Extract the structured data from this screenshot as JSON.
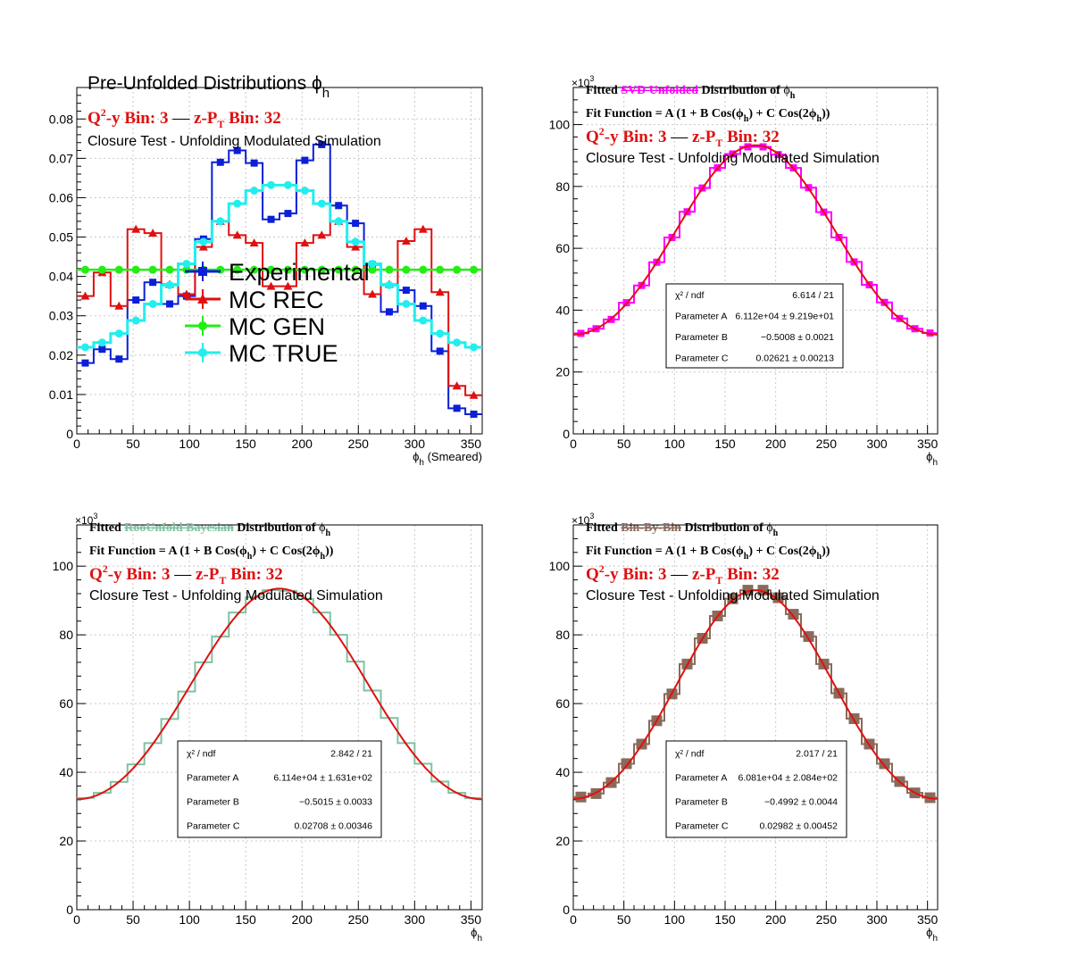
{
  "colors": {
    "exp": "#0a1fd6",
    "rec": "#e01010",
    "gen": "#22ee11",
    "true": "#22eeee",
    "svd": "#ff00ff",
    "bayes": "#7fc2a2",
    "bbb": "#8a6a5a",
    "fit": "#e01010",
    "red_text": "#e01010",
    "grid": "#c8c8c8"
  },
  "chart_data": [
    {
      "type": "bar",
      "title": "Pre-Unfolded Distributions",
      "title_symbol": "ϕ",
      "title_sub": "h",
      "bin_line": {
        "q2y": "Q",
        "sup": "2",
        "q2y_rest": "-y Bin: 3",
        "dash": "—",
        "zpt": "z-P",
        "zpt_sub": "T",
        "zpt_rest": " Bin: 32"
      },
      "subtitle": "Closure Test - Unfolding Modulated Simulation",
      "xlabel": "ϕ",
      "xlabel_sub": "h",
      "xlabel_suffix": " (Smeared)",
      "xlim": [
        0,
        360
      ],
      "ylim": [
        0,
        0.088
      ],
      "x_ticks": [
        "0",
        "50",
        "100",
        "150",
        "200",
        "250",
        "300",
        "350"
      ],
      "y_ticks": [
        "0",
        "0.01",
        "0.02",
        "0.03",
        "0.04",
        "0.05",
        "0.06",
        "0.07",
        "0.08"
      ],
      "grid": true,
      "legend_position": "center-left",
      "bin_centers": [
        7.5,
        22.5,
        37.5,
        52.5,
        67.5,
        82.5,
        97.5,
        112.5,
        127.5,
        142.5,
        157.5,
        172.5,
        187.5,
        202.5,
        217.5,
        232.5,
        247.5,
        262.5,
        277.5,
        292.5,
        307.5,
        322.5,
        337.5,
        352.5
      ],
      "series": [
        {
          "name": "Experimental",
          "color_key": "exp",
          "marker": "square",
          "values": [
            0.018,
            0.0215,
            0.019,
            0.034,
            0.0385,
            0.033,
            0.035,
            0.0495,
            0.069,
            0.072,
            0.0688,
            0.0545,
            0.056,
            0.0695,
            0.0735,
            0.058,
            0.0535,
            0.043,
            0.031,
            0.0365,
            0.0325,
            0.021,
            0.0065,
            0.005
          ]
        },
        {
          "name": "MC REC",
          "color_key": "rec",
          "marker": "triangle",
          "values": [
            0.035,
            0.041,
            0.0325,
            0.052,
            0.051,
            0.038,
            0.0355,
            0.0475,
            0.054,
            0.0505,
            0.0485,
            0.0375,
            0.0375,
            0.0485,
            0.0505,
            0.054,
            0.0475,
            0.0355,
            0.038,
            0.049,
            0.052,
            0.036,
            0.0122,
            0.0098
          ]
        },
        {
          "name": "MC GEN",
          "color_key": "gen",
          "marker": "circle",
          "values": [
            0.0417,
            0.0417,
            0.0417,
            0.0417,
            0.0417,
            0.0417,
            0.0417,
            0.0417,
            0.0417,
            0.0417,
            0.0417,
            0.0417,
            0.0417,
            0.0417,
            0.0417,
            0.0417,
            0.0417,
            0.0417,
            0.0417,
            0.0417,
            0.0417,
            0.0417,
            0.0417,
            0.0417
          ]
        },
        {
          "name": "MC TRUE",
          "color_key": "true",
          "marker": "circle",
          "values": [
            0.022,
            0.0232,
            0.0255,
            0.0288,
            0.033,
            0.0378,
            0.0432,
            0.0488,
            0.054,
            0.0585,
            0.0618,
            0.0632,
            0.0632,
            0.0618,
            0.0585,
            0.054,
            0.0488,
            0.0432,
            0.0378,
            0.033,
            0.0288,
            0.0255,
            0.0232,
            0.022
          ]
        }
      ]
    },
    {
      "type": "line",
      "title_parts": [
        "Fitted ",
        "SVD Unfolded",
        " Distribution of ",
        "ϕ",
        "h"
      ],
      "title_color_key": "svd",
      "fit_line": "Fit Function = A (1 + B Cos(ϕ",
      "fit_line_sub": "h",
      "fit_line_mid": ") + C Cos(2ϕ",
      "fit_line_end": "))",
      "bin_line": {
        "q2y": "Q",
        "sup": "2",
        "q2y_rest": "-y Bin: 3",
        "dash": "—",
        "zpt": "z-P",
        "zpt_sub": "T",
        "zpt_rest": " Bin: 32"
      },
      "subtitle": "Closure Test - Unfolding Modulated Simulation",
      "exponent": "×10",
      "exponent_sup": "3",
      "xlabel": "ϕ",
      "xlabel_sub": "h",
      "xlim": [
        0,
        360
      ],
      "ylim": [
        0,
        112000
      ],
      "x_ticks": [
        "0",
        "50",
        "100",
        "150",
        "200",
        "250",
        "300",
        "350"
      ],
      "y_ticks": [
        "0",
        "20",
        "40",
        "60",
        "80",
        "100"
      ],
      "grid": true,
      "color_key": "svd",
      "marker": "square",
      "bin_centers": [
        7.5,
        22.5,
        37.5,
        52.5,
        67.5,
        82.5,
        97.5,
        112.5,
        127.5,
        142.5,
        157.5,
        172.5,
        187.5,
        202.5,
        217.5,
        232.5,
        247.5,
        262.5,
        277.5,
        292.5,
        307.5,
        322.5,
        337.5,
        352.5
      ],
      "values": [
        32500,
        34000,
        37000,
        42400,
        48000,
        55500,
        63500,
        71800,
        79500,
        86000,
        90500,
        92800,
        92800,
        90300,
        86000,
        79600,
        71700,
        63500,
        55600,
        48200,
        42500,
        37300,
        34000,
        32600
      ],
      "fit": {
        "A": 61120,
        "B": -0.5008,
        "C": 0.02621
      },
      "stats": [
        {
          "label": "χ² / ndf",
          "value": "6.614 / 21"
        },
        {
          "label": "Parameter A",
          "value": "6.112e+04 ± 9.219e+01"
        },
        {
          "label": "Parameter B",
          "value": "−0.5008 ± 0.0021"
        },
        {
          "label": "Parameter C",
          "value": "0.02621 ± 0.00213"
        }
      ]
    },
    {
      "type": "line",
      "title_parts": [
        "Fitted ",
        "RooUnfold Bayesian",
        " Distribution of ",
        "ϕ",
        "h"
      ],
      "title_color_key": "bayes",
      "fit_line": "Fit Function = A (1 + B Cos(ϕ",
      "fit_line_sub": "h",
      "fit_line_mid": ") + C Cos(2ϕ",
      "fit_line_end": "))",
      "bin_line": {
        "q2y": "Q",
        "sup": "2",
        "q2y_rest": "-y Bin: 3",
        "dash": "—",
        "zpt": "z-P",
        "zpt_sub": "T",
        "zpt_rest": " Bin: 32"
      },
      "subtitle": "Closure Test - Unfolding Modulated Simulation",
      "exponent": "×10",
      "exponent_sup": "3",
      "xlabel": "ϕ",
      "xlabel_sub": "h",
      "xlim": [
        0,
        360
      ],
      "ylim": [
        0,
        112000
      ],
      "x_ticks": [
        "0",
        "50",
        "100",
        "150",
        "200",
        "250",
        "300",
        "350"
      ],
      "y_ticks": [
        "0",
        "20",
        "40",
        "60",
        "80",
        "100"
      ],
      "grid": true,
      "color_key": "bayes",
      "marker": "none",
      "bin_centers": [
        7.5,
        22.5,
        37.5,
        52.5,
        67.5,
        82.5,
        97.5,
        112.5,
        127.5,
        142.5,
        157.5,
        172.5,
        187.5,
        202.5,
        217.5,
        232.5,
        247.5,
        262.5,
        277.5,
        292.5,
        307.5,
        322.5,
        337.5,
        352.5
      ],
      "values": [
        32500,
        34000,
        37200,
        42300,
        48500,
        55500,
        63500,
        72000,
        79500,
        86500,
        91000,
        93000,
        92800,
        90500,
        86500,
        80000,
        72200,
        63800,
        55800,
        48500,
        42500,
        37300,
        34000,
        32500
      ],
      "fit": {
        "A": 61140,
        "B": -0.5015,
        "C": 0.02708
      },
      "stats": [
        {
          "label": "χ² / ndf",
          "value": "2.842 / 21"
        },
        {
          "label": "Parameter A",
          "value": "6.114e+04 ± 1.631e+02"
        },
        {
          "label": "Parameter B",
          "value": "−0.5015 ± 0.0033"
        },
        {
          "label": "Parameter C",
          "value": "0.02708 ± 0.00346"
        }
      ]
    },
    {
      "type": "line",
      "title_parts": [
        "Fitted ",
        "Bin-By-Bin",
        " Distribution of ",
        "ϕ",
        "h"
      ],
      "title_color_key": "bbb",
      "fit_line": "Fit Function = A (1 + B Cos(ϕ",
      "fit_line_sub": "h",
      "fit_line_mid": ") + C Cos(2ϕ",
      "fit_line_end": "))",
      "bin_line": {
        "q2y": "Q",
        "sup": "2",
        "q2y_rest": "-y Bin: 3",
        "dash": "—",
        "zpt": "z-P",
        "zpt_sub": "T",
        "zpt_rest": " Bin: 32"
      },
      "subtitle": "Closure Test - Unfolding Modulated Simulation",
      "exponent": "×10",
      "exponent_sup": "3",
      "xlabel": "ϕ",
      "xlabel_sub": "h",
      "xlim": [
        0,
        360
      ],
      "ylim": [
        0,
        112000
      ],
      "x_ticks": [
        "0",
        "50",
        "100",
        "150",
        "200",
        "250",
        "300",
        "350"
      ],
      "y_ticks": [
        "0",
        "20",
        "40",
        "60",
        "80",
        "100"
      ],
      "grid": true,
      "color_key": "bbb",
      "marker": "square",
      "bin_centers": [
        7.5,
        22.5,
        37.5,
        52.5,
        67.5,
        82.5,
        97.5,
        112.5,
        127.5,
        142.5,
        157.5,
        172.5,
        187.5,
        202.5,
        217.5,
        232.5,
        247.5,
        262.5,
        277.5,
        292.5,
        307.5,
        322.5,
        337.5,
        352.5
      ],
      "values": [
        32800,
        33800,
        37000,
        42500,
        48200,
        55000,
        62800,
        71500,
        79000,
        85500,
        90500,
        93000,
        93000,
        90800,
        86000,
        79500,
        71500,
        63000,
        55600,
        48200,
        42500,
        37300,
        34000,
        32600
      ],
      "fit": {
        "A": 60810,
        "B": -0.4992,
        "C": 0.02982
      },
      "stats": [
        {
          "label": "χ² / ndf",
          "value": "2.017 / 21"
        },
        {
          "label": "Parameter A",
          "value": "6.081e+04 ± 2.084e+02"
        },
        {
          "label": "Parameter B",
          "value": "−0.4992 ± 0.0044"
        },
        {
          "label": "Parameter C",
          "value": "0.02982 ± 0.00452"
        }
      ]
    }
  ]
}
